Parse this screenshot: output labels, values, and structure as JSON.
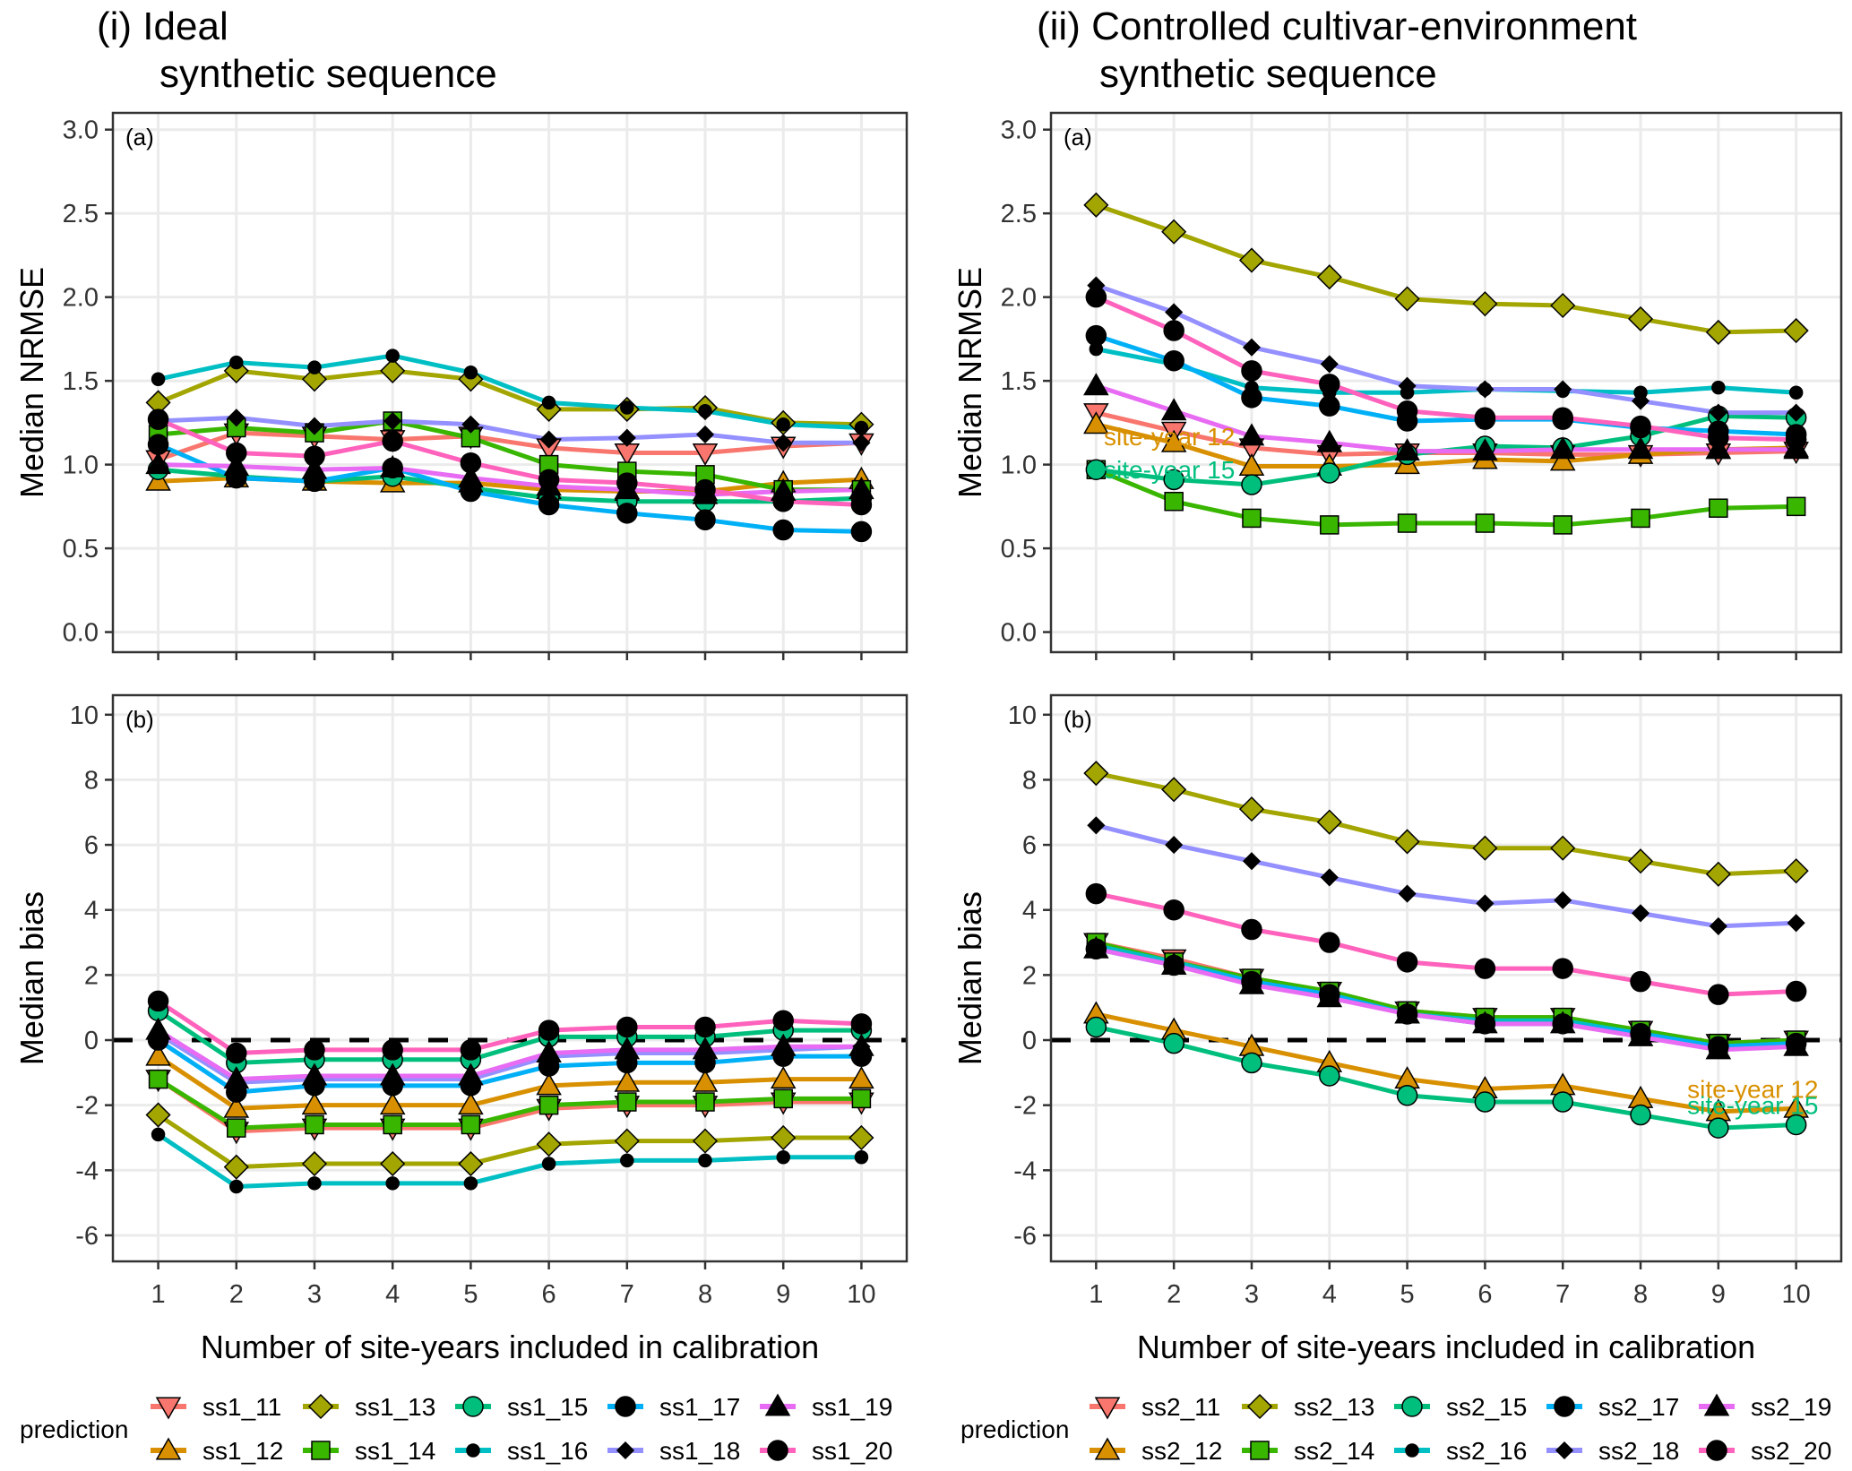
{
  "figure": {
    "columns": [
      {
        "id": "left",
        "title_line1": "(i) Ideal",
        "title_line2": "synthetic sequence"
      },
      {
        "id": "right",
        "title_line1": "(ii) Controlled cultivar-environment",
        "title_line2": "synthetic sequence"
      }
    ],
    "legend": {
      "title": "prediction",
      "left_items": [
        "ss1_11",
        "ss1_12",
        "ss1_13",
        "ss1_14",
        "ss1_15",
        "ss1_16",
        "ss1_17",
        "ss1_18",
        "ss1_19",
        "ss1_20"
      ],
      "right_items": [
        "ss2_11",
        "ss2_12",
        "ss2_13",
        "ss2_14",
        "ss2_15",
        "ss2_16",
        "ss2_17",
        "ss2_18",
        "ss2_19",
        "ss2_20"
      ]
    },
    "series_style": [
      {
        "suffix": "11",
        "color": "#F8766D",
        "shape": "triangle-down",
        "fill": "#F8766D"
      },
      {
        "suffix": "12",
        "color": "#D89000",
        "shape": "triangle-up",
        "fill": "#D89000"
      },
      {
        "suffix": "13",
        "color": "#A3A500",
        "shape": "diamond",
        "fill": "#A3A500"
      },
      {
        "suffix": "14",
        "color": "#39B600",
        "shape": "square",
        "fill": "#39B600"
      },
      {
        "suffix": "15",
        "color": "#00BF7D",
        "shape": "circle",
        "fill": "#00BF7D"
      },
      {
        "suffix": "16",
        "color": "#00BFC4",
        "shape": "small-circle",
        "fill": "#000000"
      },
      {
        "suffix": "17",
        "color": "#00B0F6",
        "shape": "circle",
        "fill": "#000000"
      },
      {
        "suffix": "18",
        "color": "#9590FF",
        "shape": "diamond-small",
        "fill": "#000000"
      },
      {
        "suffix": "19",
        "color": "#E76BF3",
        "shape": "triangle-up",
        "fill": "#000000"
      },
      {
        "suffix": "20",
        "color": "#FF62BC",
        "shape": "circle",
        "fill": "#000000"
      }
    ]
  },
  "chart_data": [
    {
      "type": "line",
      "panel": "(i)(a)",
      "tag": "(a)",
      "title": "(i) Ideal synthetic sequence",
      "xlabel": "",
      "ylabel": "Median NRMSE",
      "x": [
        1,
        2,
        3,
        4,
        5,
        6,
        7,
        8,
        9,
        10
      ],
      "ylim": [
        -0.12,
        3.1
      ],
      "yticks": [
        0.0,
        0.5,
        1.0,
        1.5,
        2.0,
        2.5,
        3.0
      ],
      "ytick_labels": [
        "0.0",
        "0.5",
        "1.0",
        "1.5",
        "2.0",
        "2.5",
        "3.0"
      ],
      "grid": true,
      "legend": "bottom",
      "series": [
        {
          "name": "ss1_11",
          "values": [
            1.03,
            1.19,
            1.17,
            1.15,
            1.17,
            1.1,
            1.07,
            1.07,
            1.11,
            1.13
          ]
        },
        {
          "name": "ss1_12",
          "values": [
            0.9,
            0.92,
            0.9,
            0.89,
            0.89,
            0.85,
            0.84,
            0.84,
            0.89,
            0.91
          ]
        },
        {
          "name": "ss1_13",
          "values": [
            1.37,
            1.56,
            1.51,
            1.56,
            1.51,
            1.33,
            1.33,
            1.34,
            1.25,
            1.24
          ]
        },
        {
          "name": "ss1_14",
          "values": [
            1.18,
            1.22,
            1.19,
            1.26,
            1.16,
            1.0,
            0.96,
            0.94,
            0.85,
            0.85
          ]
        },
        {
          "name": "ss1_15",
          "values": [
            0.97,
            0.93,
            0.9,
            0.93,
            0.86,
            0.8,
            0.78,
            0.78,
            0.78,
            0.8
          ]
        },
        {
          "name": "ss1_16",
          "values": [
            1.51,
            1.61,
            1.58,
            1.65,
            1.55,
            1.37,
            1.34,
            1.32,
            1.24,
            1.22
          ]
        },
        {
          "name": "ss1_17",
          "values": [
            1.12,
            0.92,
            0.9,
            0.98,
            0.84,
            0.76,
            0.71,
            0.67,
            0.61,
            0.6
          ]
        },
        {
          "name": "ss1_18",
          "values": [
            1.26,
            1.28,
            1.23,
            1.26,
            1.24,
            1.15,
            1.16,
            1.18,
            1.13,
            1.13
          ]
        },
        {
          "name": "ss1_19",
          "values": [
            1.0,
            0.99,
            0.97,
            0.98,
            0.92,
            0.87,
            0.85,
            0.82,
            0.84,
            0.85
          ]
        },
        {
          "name": "ss1_20",
          "values": [
            1.27,
            1.07,
            1.05,
            1.14,
            1.01,
            0.91,
            0.89,
            0.85,
            0.78,
            0.76
          ]
        }
      ]
    },
    {
      "type": "line",
      "panel": "(i)(b)",
      "tag": "(b)",
      "xlabel": "Number of site-years included in calibration",
      "ylabel": "Median bias",
      "x": [
        1,
        2,
        3,
        4,
        5,
        6,
        7,
        8,
        9,
        10
      ],
      "ylim": [
        -6.8,
        10.6
      ],
      "yticks": [
        -6,
        -4,
        -2,
        0,
        2,
        4,
        6,
        8,
        10
      ],
      "ytick_labels": [
        "-6",
        "-4",
        "-2",
        "0",
        "2",
        "4",
        "6",
        "8",
        "10"
      ],
      "reference_line": {
        "y": 0,
        "style": "dashed"
      },
      "grid": true,
      "legend": "bottom",
      "series": [
        {
          "name": "ss1_11",
          "values": [
            -1.2,
            -2.8,
            -2.7,
            -2.7,
            -2.7,
            -2.1,
            -2.0,
            -2.0,
            -1.9,
            -1.9
          ]
        },
        {
          "name": "ss1_12",
          "values": [
            -0.5,
            -2.1,
            -2.0,
            -2.0,
            -2.0,
            -1.4,
            -1.3,
            -1.3,
            -1.2,
            -1.2
          ]
        },
        {
          "name": "ss1_13",
          "values": [
            -2.3,
            -3.9,
            -3.8,
            -3.8,
            -3.8,
            -3.2,
            -3.1,
            -3.1,
            -3.0,
            -3.0
          ]
        },
        {
          "name": "ss1_14",
          "values": [
            -1.2,
            -2.7,
            -2.6,
            -2.6,
            -2.6,
            -2.0,
            -1.9,
            -1.9,
            -1.8,
            -1.8
          ]
        },
        {
          "name": "ss1_15",
          "values": [
            0.9,
            -0.7,
            -0.6,
            -0.6,
            -0.6,
            0.1,
            0.1,
            0.1,
            0.3,
            0.3
          ]
        },
        {
          "name": "ss1_16",
          "values": [
            -2.9,
            -4.5,
            -4.4,
            -4.4,
            -4.4,
            -3.8,
            -3.7,
            -3.7,
            -3.6,
            -3.6
          ]
        },
        {
          "name": "ss1_17",
          "values": [
            0.0,
            -1.6,
            -1.4,
            -1.4,
            -1.4,
            -0.8,
            -0.7,
            -0.7,
            -0.5,
            -0.5
          ]
        },
        {
          "name": "ss1_18",
          "values": [
            0.2,
            -1.3,
            -1.2,
            -1.2,
            -1.2,
            -0.5,
            -0.4,
            -0.4,
            -0.3,
            -0.2
          ]
        },
        {
          "name": "ss1_19",
          "values": [
            0.3,
            -1.2,
            -1.1,
            -1.1,
            -1.1,
            -0.4,
            -0.3,
            -0.3,
            -0.2,
            -0.2
          ]
        },
        {
          "name": "ss1_20",
          "values": [
            1.2,
            -0.4,
            -0.3,
            -0.3,
            -0.3,
            0.3,
            0.4,
            0.4,
            0.6,
            0.5
          ]
        }
      ]
    },
    {
      "type": "line",
      "panel": "(ii)(a)",
      "tag": "(a)",
      "title": "(ii) Controlled cultivar-environment synthetic sequence",
      "xlabel": "",
      "ylabel": "Median NRMSE",
      "x": [
        1,
        2,
        3,
        4,
        5,
        6,
        7,
        8,
        9,
        10
      ],
      "ylim": [
        -0.12,
        3.1
      ],
      "yticks": [
        0.0,
        0.5,
        1.0,
        1.5,
        2.0,
        2.5,
        3.0
      ],
      "ytick_labels": [
        "0.0",
        "0.5",
        "1.0",
        "1.5",
        "2.0",
        "2.5",
        "3.0"
      ],
      "grid": true,
      "legend": "bottom",
      "annotations": [
        {
          "text": "site-year 12",
          "x": 1.1,
          "y": 1.17,
          "color": "#D89000"
        },
        {
          "text": "site-year 15",
          "x": 1.1,
          "y": 0.97,
          "color": "#00BF7D"
        }
      ],
      "series": [
        {
          "name": "ss2_11",
          "values": [
            1.31,
            1.2,
            1.1,
            1.06,
            1.07,
            1.07,
            1.06,
            1.06,
            1.07,
            1.08
          ]
        },
        {
          "name": "ss2_12",
          "values": [
            1.24,
            1.13,
            0.99,
            0.99,
            1.0,
            1.03,
            1.02,
            1.06,
            1.09,
            1.1
          ]
        },
        {
          "name": "ss2_13",
          "values": [
            2.55,
            2.39,
            2.22,
            2.12,
            1.99,
            1.96,
            1.95,
            1.87,
            1.79,
            1.8
          ]
        },
        {
          "name": "ss2_14",
          "values": [
            0.97,
            0.78,
            0.68,
            0.64,
            0.65,
            0.65,
            0.64,
            0.68,
            0.74,
            0.75
          ]
        },
        {
          "name": "ss2_15",
          "values": [
            0.97,
            0.91,
            0.88,
            0.95,
            1.06,
            1.11,
            1.1,
            1.17,
            1.29,
            1.28
          ]
        },
        {
          "name": "ss2_16",
          "values": [
            1.69,
            1.6,
            1.46,
            1.43,
            1.43,
            1.45,
            1.44,
            1.43,
            1.46,
            1.43
          ]
        },
        {
          "name": "ss2_17",
          "values": [
            1.77,
            1.62,
            1.4,
            1.35,
            1.26,
            1.27,
            1.27,
            1.22,
            1.2,
            1.18
          ]
        },
        {
          "name": "ss2_18",
          "values": [
            2.07,
            1.91,
            1.7,
            1.6,
            1.47,
            1.45,
            1.45,
            1.38,
            1.31,
            1.31
          ]
        },
        {
          "name": "ss2_19",
          "values": [
            1.47,
            1.32,
            1.17,
            1.13,
            1.08,
            1.08,
            1.09,
            1.09,
            1.09,
            1.09
          ]
        },
        {
          "name": "ss2_20",
          "values": [
            2.0,
            1.8,
            1.56,
            1.48,
            1.32,
            1.28,
            1.28,
            1.23,
            1.16,
            1.15
          ]
        }
      ]
    },
    {
      "type": "line",
      "panel": "(ii)(b)",
      "tag": "(b)",
      "xlabel": "Number of site-years included in calibration",
      "ylabel": "Median bias",
      "x": [
        1,
        2,
        3,
        4,
        5,
        6,
        7,
        8,
        9,
        10
      ],
      "ylim": [
        -6.8,
        10.6
      ],
      "yticks": [
        -6,
        -4,
        -2,
        0,
        2,
        4,
        6,
        8,
        10
      ],
      "ytick_labels": [
        "-6",
        "-4",
        "-2",
        "0",
        "2",
        "4",
        "6",
        "8",
        "10"
      ],
      "reference_line": {
        "y": 0,
        "style": "dashed"
      },
      "grid": true,
      "legend": "bottom",
      "annotations": [
        {
          "text": "site-year 12",
          "x": 8.6,
          "y": -1.5,
          "color": "#D89000"
        },
        {
          "text": "site-year 15",
          "x": 8.6,
          "y": -2.0,
          "color": "#00BF7D"
        }
      ],
      "series": [
        {
          "name": "ss2_11",
          "values": [
            3.0,
            2.5,
            1.9,
            1.5,
            0.9,
            0.7,
            0.7,
            0.3,
            -0.1,
            0.0
          ]
        },
        {
          "name": "ss2_12",
          "values": [
            0.8,
            0.3,
            -0.2,
            -0.7,
            -1.2,
            -1.5,
            -1.4,
            -1.8,
            -2.2,
            -2.1
          ]
        },
        {
          "name": "ss2_13",
          "values": [
            8.2,
            7.7,
            7.1,
            6.7,
            6.1,
            5.9,
            5.9,
            5.5,
            5.1,
            5.2
          ]
        },
        {
          "name": "ss2_14",
          "values": [
            3.0,
            2.4,
            1.9,
            1.5,
            0.9,
            0.7,
            0.7,
            0.3,
            -0.1,
            0.0
          ]
        },
        {
          "name": "ss2_15",
          "values": [
            0.4,
            -0.1,
            -0.7,
            -1.1,
            -1.7,
            -1.9,
            -1.9,
            -2.3,
            -2.7,
            -2.6
          ]
        },
        {
          "name": "ss2_16",
          "values": [
            2.9,
            2.4,
            1.8,
            1.4,
            0.8,
            0.6,
            0.6,
            0.2,
            -0.2,
            -0.1
          ]
        },
        {
          "name": "ss2_17",
          "values": [
            2.8,
            2.3,
            1.8,
            1.4,
            0.8,
            0.5,
            0.5,
            0.2,
            -0.2,
            -0.1
          ]
        },
        {
          "name": "ss2_18",
          "values": [
            6.6,
            6.0,
            5.5,
            5.0,
            4.5,
            4.2,
            4.3,
            3.9,
            3.5,
            3.6
          ]
        },
        {
          "name": "ss2_19",
          "values": [
            2.8,
            2.3,
            1.7,
            1.3,
            0.8,
            0.5,
            0.5,
            0.1,
            -0.3,
            -0.2
          ]
        },
        {
          "name": "ss2_20",
          "values": [
            4.5,
            4.0,
            3.4,
            3.0,
            2.4,
            2.2,
            2.2,
            1.8,
            1.4,
            1.5
          ]
        }
      ]
    }
  ]
}
